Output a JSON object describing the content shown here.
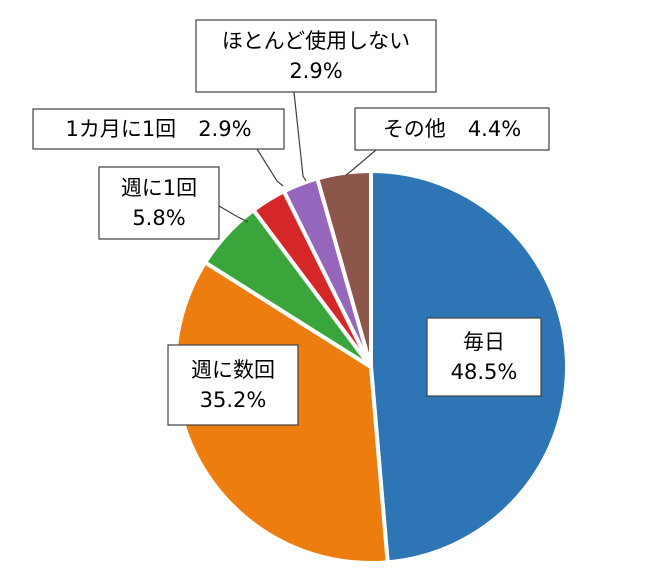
{
  "chart_data": {
    "type": "pie",
    "start_angle_deg": 0,
    "direction": "clockwise",
    "colors": {
      "slice_border": "#ffffff",
      "label_border": "#404040"
    },
    "slices": [
      {
        "name": "毎日",
        "value": 48.5,
        "display": "48.5%",
        "color": "#2E75B6"
      },
      {
        "name": "週に数回",
        "value": 35.2,
        "display": "35.2%",
        "color": "#ED7D0E"
      },
      {
        "name": "週に1回",
        "value": 5.8,
        "display": "5.8%",
        "color": "#3AA53A"
      },
      {
        "name": "1カ月に1回",
        "value": 2.9,
        "display": "2.9%",
        "color": "#D62728"
      },
      {
        "name": "ほとんど使用しない",
        "value": 2.9,
        "display": "2.9%",
        "color": "#9467BD"
      },
      {
        "name": "その他",
        "value": 4.4,
        "display": "4.4%",
        "color": "#8C564B"
      }
    ]
  }
}
